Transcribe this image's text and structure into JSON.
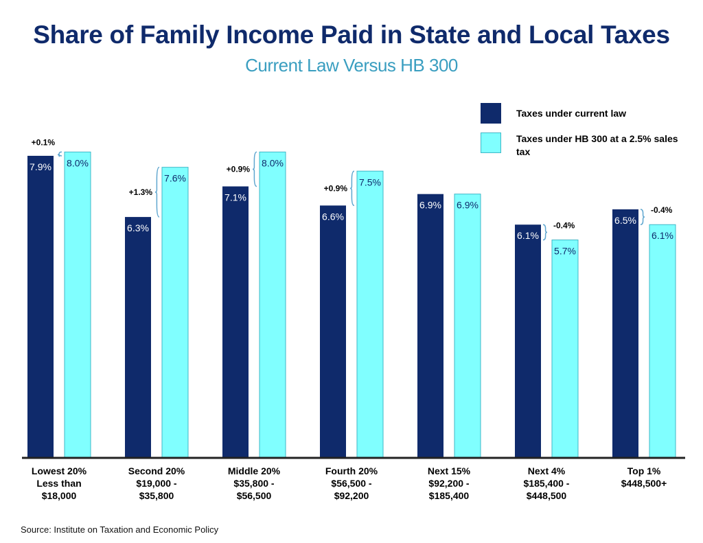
{
  "title": "Share of Family Income Paid in State and Local Taxes",
  "subtitle": "Current Law Versus HB 300",
  "source": "Source: Institute on Taxation and Economic Policy",
  "colors": {
    "current": "#0f2a6b",
    "hb300": "#80ffff",
    "bracket": "#5fa6cf"
  },
  "legend": [
    {
      "label": "Taxes under current law",
      "color": "#0f2a6b"
    },
    {
      "label": "Taxes under HB 300 at a 2.5% sales tax",
      "color": "#80ffff"
    }
  ],
  "chart_data": {
    "type": "bar",
    "ylim": [
      0,
      10
    ],
    "categories": [
      [
        "Lowest 20%",
        "Less than",
        "$18,000"
      ],
      [
        "Second 20%",
        "$19,000 -",
        "$35,800"
      ],
      [
        "Middle 20%",
        "$35,800 -",
        "$56,500"
      ],
      [
        "Fourth 20%",
        "$56,500 -",
        "$92,200"
      ],
      [
        "Next 15%",
        "$92,200 -",
        "$185,400"
      ],
      [
        "Next 4%",
        "$185,400 -",
        "$448,500"
      ],
      [
        "Top 1%",
        "$448,500+"
      ]
    ],
    "series": [
      {
        "name": "Taxes under current law",
        "values": [
          7.9,
          6.3,
          7.1,
          6.6,
          6.9,
          6.1,
          6.5
        ],
        "labels": [
          "7.9%",
          "6.3%",
          "7.1%",
          "6.6%",
          "6.9%",
          "6.1%",
          "6.5%"
        ]
      },
      {
        "name": "Taxes under HB 300 at a 2.5% sales tax",
        "values": [
          8.0,
          7.6,
          8.0,
          7.5,
          6.9,
          5.7,
          6.1
        ],
        "labels": [
          "8.0%",
          "7.6%",
          "8.0%",
          "7.5%",
          "6.9%",
          "5.7%",
          "6.1%"
        ]
      }
    ],
    "changes": [
      "+0.1%",
      "+1.3%",
      "+0.9%",
      "+0.9%",
      "",
      "-0.4%",
      "-0.4%"
    ]
  }
}
